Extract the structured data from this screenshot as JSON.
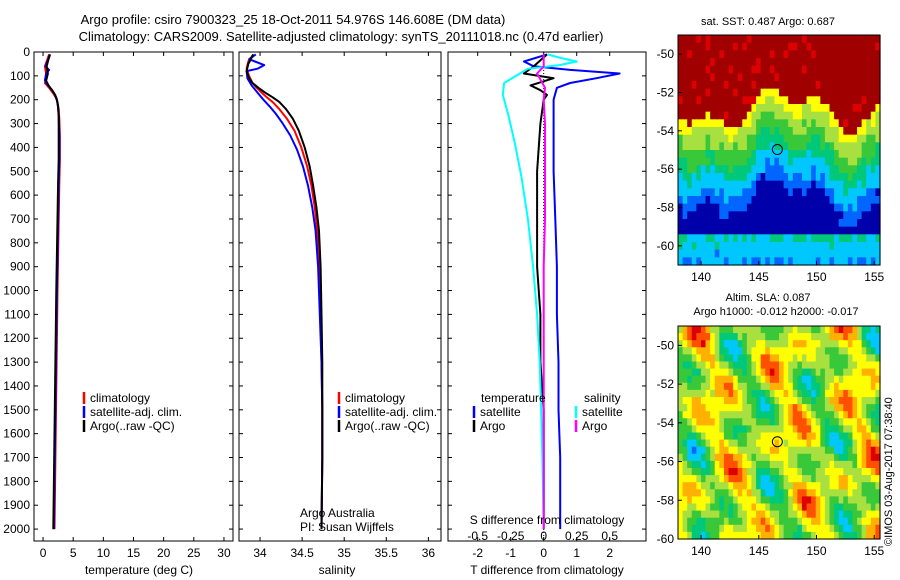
{
  "title_line1": "Argo profile: csiro 7900323_25 18-Oct-2011 54.976S 146.608E (DM data)",
  "title_line2": "Climatology: CARS2009. Satellite-adjusted climatology: synTS_20111018.nc (0.47d earlier)",
  "watermark": "©IMOS 03-Aug-2017 07:38:40",
  "colors": {
    "climatology": "#ff0000",
    "satellite": "#0000ff",
    "argo": "#000000",
    "satellite_salinity": "#00ffff",
    "argo_salinity": "#ff00ff"
  },
  "chart_data": [
    {
      "id": "temperature",
      "type": "line",
      "xlabel": "temperature (deg C)",
      "xlim": [
        -1.5,
        31.5
      ],
      "ylim": [
        0,
        2050
      ],
      "y_reversed": true,
      "xticks": [
        0,
        5,
        10,
        15,
        20,
        25,
        30
      ],
      "yticks": [
        0,
        100,
        200,
        300,
        400,
        500,
        600,
        700,
        800,
        900,
        1000,
        1100,
        1200,
        1300,
        1400,
        1500,
        1600,
        1700,
        1800,
        1900,
        2000
      ],
      "legend": [
        "climatology",
        "satellite-adj. clim.",
        "Argo(..raw -QC)"
      ],
      "series": [
        {
          "name": "climatology",
          "color_key": "climatology",
          "points": [
            [
              1.0,
              10
            ],
            [
              0.3,
              60
            ],
            [
              0.5,
              90
            ],
            [
              0.6,
              110
            ],
            [
              0.3,
              130
            ],
            [
              1.0,
              150
            ],
            [
              1.6,
              170
            ],
            [
              2.1,
              190
            ],
            [
              2.4,
              210
            ],
            [
              2.6,
              240
            ],
            [
              2.7,
              280
            ],
            [
              2.8,
              350
            ],
            [
              2.8,
              450
            ],
            [
              2.7,
              550
            ],
            [
              2.6,
              700
            ],
            [
              2.5,
              850
            ],
            [
              2.4,
              1000
            ],
            [
              2.3,
              1200
            ],
            [
              2.2,
              1400
            ],
            [
              2.1,
              1600
            ],
            [
              2.0,
              1800
            ],
            [
              1.9,
              2000
            ]
          ]
        },
        {
          "name": "satellite-adj. clim.",
          "color_key": "satellite",
          "points": [
            [
              1.2,
              10
            ],
            [
              0.4,
              60
            ],
            [
              1.0,
              75
            ],
            [
              0.5,
              90
            ],
            [
              0.3,
              120
            ],
            [
              0.8,
              140
            ],
            [
              1.5,
              160
            ],
            [
              2.0,
              180
            ],
            [
              2.3,
              200
            ],
            [
              2.5,
              230
            ],
            [
              2.6,
              270
            ],
            [
              2.7,
              350
            ],
            [
              2.7,
              450
            ],
            [
              2.6,
              550
            ],
            [
              2.5,
              700
            ],
            [
              2.4,
              850
            ],
            [
              2.3,
              1000
            ],
            [
              2.2,
              1200
            ],
            [
              2.1,
              1400
            ],
            [
              2.0,
              1600
            ],
            [
              1.9,
              1800
            ],
            [
              1.8,
              2000
            ]
          ]
        },
        {
          "name": "Argo(..raw -QC)",
          "color_key": "argo",
          "points": [
            [
              1.1,
              10
            ],
            [
              0.6,
              60
            ],
            [
              0.8,
              90
            ],
            [
              0.5,
              120
            ],
            [
              0.9,
              140
            ],
            [
              1.5,
              160
            ],
            [
              2.0,
              180
            ],
            [
              2.3,
              200
            ],
            [
              2.5,
              230
            ],
            [
              2.6,
              270
            ],
            [
              2.6,
              350
            ],
            [
              2.6,
              450
            ],
            [
              2.5,
              550
            ],
            [
              2.4,
              700
            ],
            [
              2.3,
              850
            ],
            [
              2.2,
              1000
            ],
            [
              2.1,
              1200
            ],
            [
              2.0,
              1400
            ],
            [
              1.9,
              1600
            ],
            [
              1.8,
              1800
            ],
            [
              1.7,
              2000
            ]
          ]
        }
      ]
    },
    {
      "id": "salinity",
      "type": "line",
      "xlabel": "salinity",
      "xlim": [
        33.75,
        36.15
      ],
      "ylim": [
        0,
        2050
      ],
      "y_reversed": true,
      "xticks": [
        34,
        34.5,
        35,
        35.5,
        36
      ],
      "legend": [
        "climatology",
        "satellite-adj. clim.",
        "Argo(..raw -QC)"
      ],
      "footnote_1": "Argo Australia",
      "footnote_2": "PI: Susan Wijffels",
      "series": [
        {
          "name": "climatology",
          "color_key": "climatology",
          "points": [
            [
              33.92,
              10
            ],
            [
              33.86,
              40
            ],
            [
              33.84,
              70
            ],
            [
              33.87,
              100
            ],
            [
              33.91,
              130
            ],
            [
              33.96,
              150
            ],
            [
              34.02,
              170
            ],
            [
              34.08,
              190
            ],
            [
              34.15,
              210
            ],
            [
              34.23,
              240
            ],
            [
              34.32,
              280
            ],
            [
              34.41,
              330
            ],
            [
              34.49,
              400
            ],
            [
              34.56,
              480
            ],
            [
              34.61,
              560
            ],
            [
              34.65,
              650
            ],
            [
              34.68,
              750
            ],
            [
              34.7,
              900
            ],
            [
              34.72,
              1100
            ],
            [
              34.73,
              1300
            ],
            [
              34.74,
              1500
            ],
            [
              34.74,
              1700
            ],
            [
              34.73,
              2000
            ]
          ]
        },
        {
          "name": "satellite-adj. clim.",
          "color_key": "satellite",
          "points": [
            [
              33.95,
              10
            ],
            [
              33.87,
              30
            ],
            [
              34.05,
              55
            ],
            [
              33.97,
              70
            ],
            [
              33.84,
              80
            ],
            [
              33.85,
              110
            ],
            [
              33.9,
              140
            ],
            [
              33.97,
              170
            ],
            [
              34.04,
              200
            ],
            [
              34.12,
              230
            ],
            [
              34.19,
              260
            ],
            [
              34.27,
              300
            ],
            [
              34.36,
              350
            ],
            [
              34.44,
              410
            ],
            [
              34.51,
              480
            ],
            [
              34.57,
              560
            ],
            [
              34.62,
              650
            ],
            [
              34.66,
              750
            ],
            [
              34.69,
              900
            ],
            [
              34.71,
              1100
            ],
            [
              34.73,
              1300
            ],
            [
              34.74,
              1500
            ],
            [
              34.74,
              1700
            ],
            [
              34.73,
              2000
            ]
          ]
        },
        {
          "name": "Argo(..raw -QC)",
          "color_key": "argo",
          "points": [
            [
              33.92,
              10
            ],
            [
              33.86,
              50
            ],
            [
              33.84,
              80
            ],
            [
              33.87,
              110
            ],
            [
              33.91,
              130
            ],
            [
              33.98,
              150
            ],
            [
              34.06,
              170
            ],
            [
              34.15,
              190
            ],
            [
              34.23,
              210
            ],
            [
              34.31,
              240
            ],
            [
              34.39,
              280
            ],
            [
              34.46,
              330
            ],
            [
              34.53,
              400
            ],
            [
              34.59,
              480
            ],
            [
              34.63,
              560
            ],
            [
              34.67,
              650
            ],
            [
              34.7,
              750
            ],
            [
              34.72,
              900
            ],
            [
              34.73,
              1100
            ],
            [
              34.74,
              1300
            ],
            [
              34.74,
              1500
            ],
            [
              34.74,
              1700
            ],
            [
              34.73,
              2000
            ]
          ]
        }
      ]
    },
    {
      "id": "difference",
      "type": "line",
      "xlabel": "T difference from climatology",
      "xlabel2": "S difference from climatology",
      "xlim": [
        -2.9,
        3.1
      ],
      "ylim": [
        0,
        2050
      ],
      "y_reversed": true,
      "xticks_T": [
        -2,
        -1,
        0,
        1,
        2
      ],
      "xticks_S": [
        -0.5,
        -0.25,
        0,
        0.25,
        0.5
      ],
      "s_scale": 4,
      "legend_temperature_title": "temperature",
      "legend_salinity_title": "salinity",
      "legend_items": [
        {
          "label": "satellite",
          "color_key": "satellite",
          "group": "temperature"
        },
        {
          "label": "Argo",
          "color_key": "argo",
          "group": "temperature"
        },
        {
          "label": "satellite",
          "color_key": "satellite_salinity",
          "group": "salinity"
        },
        {
          "label": "Argo",
          "color_key": "argo_salinity",
          "group": "salinity"
        }
      ],
      "series": [
        {
          "name": "temperature satellite",
          "color_key": "satellite",
          "points": [
            [
              0.1,
              10
            ],
            [
              -0.6,
              40
            ],
            [
              -0.3,
              60
            ],
            [
              0.8,
              75
            ],
            [
              2.3,
              90
            ],
            [
              1.6,
              110
            ],
            [
              0.8,
              130
            ],
            [
              0.4,
              150
            ],
            [
              0.3,
              200
            ],
            [
              0.3,
              300
            ],
            [
              0.3,
              500
            ],
            [
              0.35,
              700
            ],
            [
              0.4,
              900
            ],
            [
              0.4,
              1100
            ],
            [
              0.45,
              1300
            ],
            [
              0.45,
              1500
            ],
            [
              0.5,
              1700
            ],
            [
              0.5,
              2000
            ]
          ]
        },
        {
          "name": "temperature Argo",
          "color_key": "argo",
          "points": [
            [
              0.1,
              10
            ],
            [
              -0.3,
              60
            ],
            [
              -0.6,
              90
            ],
            [
              0.3,
              110
            ],
            [
              -0.4,
              140
            ],
            [
              -0.1,
              160
            ],
            [
              0.1,
              180
            ],
            [
              0.0,
              200
            ],
            [
              -0.1,
              300
            ],
            [
              -0.2,
              500
            ],
            [
              -0.2,
              700
            ],
            [
              -0.2,
              900
            ],
            [
              -0.1,
              1100
            ],
            [
              -0.1,
              1300
            ],
            [
              0.0,
              1500
            ],
            [
              0.0,
              1700
            ],
            [
              0.0,
              2000
            ]
          ]
        },
        {
          "name": "salinity satellite",
          "color_key": "satellite_salinity",
          "points": [
            [
              0.03,
              10
            ],
            [
              0.13,
              25
            ],
            [
              0.25,
              40
            ],
            [
              0.12,
              55
            ],
            [
              -0.12,
              70
            ],
            [
              -0.18,
              90
            ],
            [
              -0.3,
              130
            ],
            [
              -0.31,
              180
            ],
            [
              -0.27,
              260
            ],
            [
              -0.22,
              380
            ],
            [
              -0.17,
              520
            ],
            [
              -0.12,
              700
            ],
            [
              -0.08,
              900
            ],
            [
              -0.05,
              1100
            ],
            [
              -0.03,
              1300
            ],
            [
              -0.02,
              1500
            ],
            [
              -0.01,
              1700
            ],
            [
              0.0,
              2000
            ]
          ]
        },
        {
          "name": "salinity Argo",
          "color_key": "argo_salinity",
          "points": [
            [
              0.0,
              10
            ],
            [
              0.0,
              60
            ],
            [
              -0.05,
              90
            ],
            [
              -0.03,
              110
            ],
            [
              0.01,
              150
            ],
            [
              0.0,
              200
            ],
            [
              0.01,
              300
            ],
            [
              0.01,
              500
            ],
            [
              0.01,
              700
            ],
            [
              0.0,
              900
            ],
            [
              0.0,
              1100
            ],
            [
              0.0,
              1300
            ],
            [
              0.0,
              1500
            ],
            [
              0.0,
              1700
            ],
            [
              0.0,
              2000
            ]
          ]
        }
      ]
    },
    {
      "id": "sst-map",
      "type": "heatmap",
      "title": "sat. SST: 0.487  Argo: 0.687",
      "xlim": [
        138,
        155.5
      ],
      "ylim": [
        -61,
        -49
      ],
      "xticks": [
        140,
        145,
        150,
        155
      ],
      "yticks": [
        -50,
        -52,
        -54,
        -56,
        -58,
        -60
      ],
      "marker": [
        146.608,
        -54.976
      ],
      "palette": [
        "#0000aa",
        "#0066ff",
        "#00c8ff",
        "#00c87a",
        "#39c83a",
        "#a8e040",
        "#ffff00",
        "#ffb000",
        "#ff5000",
        "#dd0000",
        "#a00000"
      ]
    },
    {
      "id": "sla-map",
      "type": "heatmap",
      "title_line1": "Altim. SLA: 0.087",
      "title_line2": "Argo h1000: -0.012  h2000: -0.017",
      "xlim": [
        138,
        155.5
      ],
      "ylim": [
        -60,
        -49
      ],
      "xticks": [
        140,
        145,
        150,
        155
      ],
      "yticks": [
        -50,
        -52,
        -54,
        -56,
        -58,
        -60
      ],
      "marker": [
        146.608,
        -54.976
      ],
      "palette": [
        "#0000aa",
        "#0066ff",
        "#00c8ff",
        "#00c87a",
        "#39c83a",
        "#a8e040",
        "#ffff00",
        "#ffb000",
        "#ff5000",
        "#dd0000",
        "#a00000"
      ]
    }
  ]
}
